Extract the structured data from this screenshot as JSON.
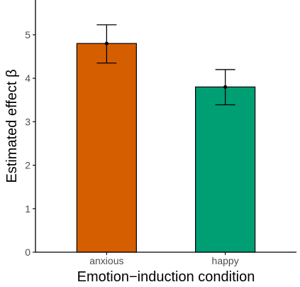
{
  "chart_data": {
    "type": "bar",
    "categories": [
      "anxious",
      "happy"
    ],
    "values": [
      4.8,
      3.8
    ],
    "error_bars": [
      {
        "category": "anxious",
        "lower": 4.35,
        "upper": 5.23
      },
      {
        "category": "happy",
        "lower": 3.39,
        "upper": 4.2
      }
    ],
    "colors": [
      "#D55E00",
      "#009E73"
    ],
    "title": "",
    "xlabel": "Emotion−induction condition",
    "ylabel": "Estimated effect β",
    "ylim": [
      0,
      5.8
    ],
    "yticks": [
      "0",
      "1",
      "2",
      "3",
      "4",
      "5"
    ],
    "grid": false,
    "legend": "none"
  }
}
